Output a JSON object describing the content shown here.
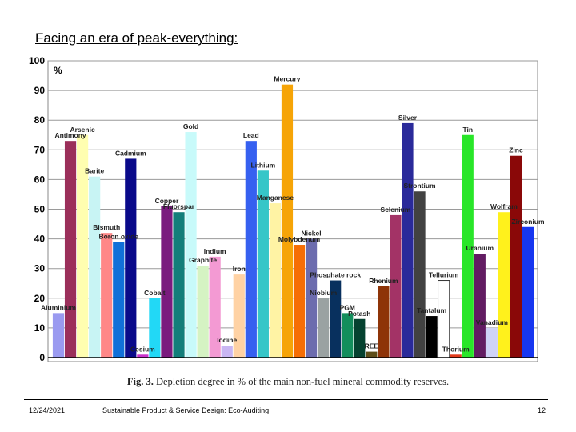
{
  "slide": {
    "title": "Facing an era of peak-everything:",
    "caption_label": "Fig. 3.",
    "caption_text": "Depletion degree in % of the main non-fuel mineral commodity reserves.",
    "footer_date": "12/24/2021",
    "footer_center": "Sustainable Product & Service Design: Eco-Auditing",
    "footer_page": "12"
  },
  "chart_data": {
    "type": "bar",
    "ylabel": "%",
    "ylim": [
      0,
      100
    ],
    "yticks": [
      0,
      10,
      20,
      30,
      40,
      50,
      60,
      70,
      80,
      90,
      100
    ],
    "grid": true,
    "legend": "none",
    "bars": [
      {
        "label": "Aluminium",
        "value": 15,
        "color": "#9a9af0"
      },
      {
        "label": "Antimony",
        "value": 73,
        "color": "#9b2f5a"
      },
      {
        "label": "Arsenic",
        "value": 75,
        "color": "#fffeb0"
      },
      {
        "label": "Barite",
        "value": 61,
        "color": "#c8f4f4"
      },
      {
        "label": "Bismuth",
        "value": 42,
        "color": "#ff8787"
      },
      {
        "label": "Boron oxide",
        "value": 39,
        "color": "#1170d8"
      },
      {
        "label": "Cadmium",
        "value": 67,
        "color": "#0a0a8a"
      },
      {
        "label": "Cesium",
        "value": 1,
        "color": "#cc33cc"
      },
      {
        "label": "Cobalt",
        "value": 20,
        "color": "#22d8f6"
      },
      {
        "label": "Copper",
        "value": 51,
        "color": "#7a1b7e"
      },
      {
        "label": "Fluorspar",
        "value": 49,
        "color": "#137e7a"
      },
      {
        "label": "Gold",
        "value": 76,
        "color": "#c8fafa"
      },
      {
        "label": "Graphite",
        "value": 31,
        "color": "#d5f3c3"
      },
      {
        "label": "Indium",
        "value": 34,
        "color": "#f39ad3"
      },
      {
        "label": "Iodine",
        "value": 4,
        "color": "#c9b6f3"
      },
      {
        "label": "Iron",
        "value": 28,
        "color": "#ffd2a4"
      },
      {
        "label": "Lead",
        "value": 73,
        "color": "#3660f0"
      },
      {
        "label": "Lithium",
        "value": 63,
        "color": "#36c6c8"
      },
      {
        "label": "Manganese",
        "value": 52,
        "color": "#fff3a4"
      },
      {
        "label": "Mercury",
        "value": 92,
        "color": "#f6a407"
      },
      {
        "label": "Molybdenum",
        "value": 38,
        "color": "#f66e05"
      },
      {
        "label": "Nickel",
        "value": 40,
        "color": "#6c6cae"
      },
      {
        "label": "Niobium",
        "value": 20,
        "color": "#9aa2a2"
      },
      {
        "label": "Phosphate rock",
        "value": 26,
        "color": "#08305e"
      },
      {
        "label": "PGM",
        "value": 15,
        "color": "#138e5c"
      },
      {
        "label": "Potash",
        "value": 13,
        "color": "#054230"
      },
      {
        "label": "REE",
        "value": 2,
        "color": "#5e4e18"
      },
      {
        "label": "Rhenium",
        "value": 24,
        "color": "#8e3408"
      },
      {
        "label": "Selenium",
        "value": 48,
        "color": "#a33366"
      },
      {
        "label": "Silver",
        "value": 79,
        "color": "#2a2a9a"
      },
      {
        "label": "Strontium",
        "value": 56,
        "color": "#424242"
      },
      {
        "label": "Tantalum",
        "value": 14,
        "color": "#000000"
      },
      {
        "label": "Tellurium",
        "value": 26,
        "color": "#ffffff"
      },
      {
        "label": "Thorium",
        "value": 1,
        "color": "#e23a1a"
      },
      {
        "label": "Tin",
        "value": 75,
        "color": "#29e629"
      },
      {
        "label": "Uranium",
        "value": 35,
        "color": "#621c62"
      },
      {
        "label": "Vanadium",
        "value": 10,
        "color": "#cfd3f6"
      },
      {
        "label": "Wolfram",
        "value": 49,
        "color": "#fff11c"
      },
      {
        "label": "Zinc",
        "value": 68,
        "color": "#8a0808"
      },
      {
        "label": "Zirconium",
        "value": 44,
        "color": "#1636f0"
      }
    ]
  }
}
